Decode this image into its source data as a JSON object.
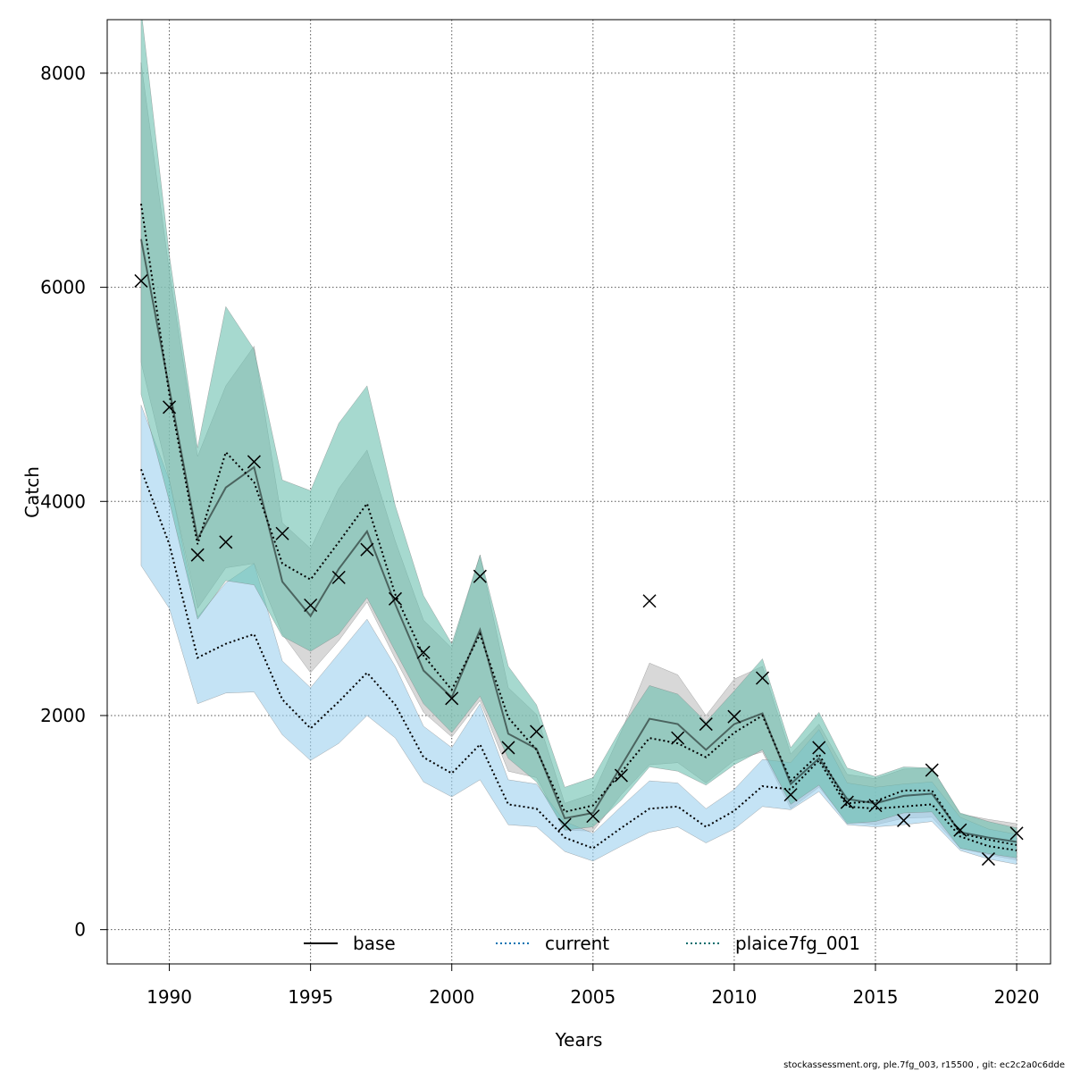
{
  "chart_data": {
    "type": "line",
    "xlabel": "Years",
    "ylabel": "Catch",
    "xlim": [
      1987.8,
      2021.2
    ],
    "ylim": [
      -320,
      8500
    ],
    "xticks": [
      1990,
      1995,
      2000,
      2005,
      2010,
      2015,
      2020
    ],
    "yticks": [
      0,
      2000,
      4000,
      6000,
      8000
    ],
    "grid": true,
    "legend_position": "bottom",
    "years": [
      1989,
      1990,
      1991,
      1992,
      1993,
      1994,
      1995,
      1996,
      1997,
      1998,
      1999,
      2000,
      2001,
      2002,
      2003,
      2004,
      2005,
      2006,
      2007,
      2008,
      2009,
      2010,
      2011,
      2012,
      2013,
      2014,
      2015,
      2016,
      2017,
      2018,
      2019,
      2020
    ],
    "observed": [
      6060,
      4880,
      3500,
      3620,
      4370,
      3700,
      3030,
      3290,
      3550,
      3090,
      2590,
      2160,
      3300,
      1700,
      1850,
      980,
      1060,
      1440,
      3070,
      1790,
      1920,
      1990,
      2350,
      1260,
      1700,
      1190,
      1160,
      1020,
      1490,
      930,
      660,
      900
    ],
    "series": [
      {
        "name": "base",
        "color": "#000000",
        "band_color": "#bebebe",
        "values": [
          6450,
          5050,
          3650,
          4130,
          4320,
          3250,
          2930,
          3370,
          3720,
          3040,
          2420,
          2170,
          2800,
          1830,
          1690,
          1040,
          1090,
          1530,
          1970,
          1920,
          1680,
          1920,
          2020,
          1360,
          1600,
          1220,
          1180,
          1250,
          1270,
          910,
          860,
          820
        ],
        "lower": [
          5300,
          4200,
          3000,
          3380,
          3420,
          2760,
          2400,
          2700,
          3060,
          2530,
          2030,
          1800,
          2140,
          1480,
          1420,
          930,
          920,
          1260,
          1540,
          1560,
          1370,
          1580,
          1660,
          1130,
          1330,
          1010,
          980,
          1040,
          1050,
          760,
          700,
          650
        ],
        "upper": [
          8100,
          6150,
          4420,
          5080,
          5450,
          3800,
          3560,
          4120,
          4480,
          3630,
          2890,
          2630,
          3500,
          2260,
          2010,
          1180,
          1270,
          1850,
          2490,
          2380,
          2000,
          2340,
          2460,
          1640,
          1920,
          1450,
          1410,
          1500,
          1510,
          1080,
          1030,
          990
        ]
      },
      {
        "name": "current",
        "color": "#0072b2",
        "band_color": "#9dd0ef",
        "values": [
          4300,
          3600,
          2540,
          2670,
          2760,
          2150,
          1880,
          2130,
          2400,
          2100,
          1610,
          1460,
          1730,
          1170,
          1130,
          860,
          760,
          950,
          1130,
          1150,
          960,
          1110,
          1340,
          1310,
          1580,
          1150,
          1130,
          1150,
          1170,
          870,
          780,
          740
        ],
        "lower": [
          3400,
          3000,
          2110,
          2210,
          2220,
          1820,
          1580,
          1740,
          2000,
          1790,
          1380,
          1240,
          1400,
          980,
          960,
          730,
          640,
          780,
          910,
          960,
          810,
          940,
          1150,
          1120,
          1290,
          980,
          960,
          980,
          1010,
          740,
          660,
          610
        ],
        "upper": [
          4900,
          4200,
          2920,
          3240,
          3420,
          2510,
          2260,
          2580,
          2900,
          2460,
          1900,
          1700,
          2110,
          1400,
          1360,
          1010,
          900,
          1150,
          1390,
          1370,
          1130,
          1310,
          1590,
          1560,
          1870,
          1370,
          1330,
          1360,
          1380,
          1050,
          940,
          890
        ]
      },
      {
        "name": "plaice7fg_001",
        "color": "#006d6d",
        "band_color": "#6bbfaf",
        "values": [
          6780,
          5000,
          3600,
          4460,
          4180,
          3420,
          3270,
          3620,
          3980,
          3130,
          2560,
          2240,
          2760,
          1980,
          1680,
          1100,
          1160,
          1470,
          1790,
          1740,
          1610,
          1840,
          2000,
          1390,
          1640,
          1180,
          1200,
          1300,
          1300,
          900,
          840,
          790
        ],
        "lower": [
          5000,
          4000,
          2900,
          3260,
          3220,
          2740,
          2600,
          2760,
          3100,
          2600,
          2110,
          1840,
          2180,
          1600,
          1380,
          930,
          960,
          1210,
          1520,
          1480,
          1350,
          1540,
          1680,
          1170,
          1350,
          990,
          1010,
          1090,
          1100,
          760,
          710,
          670
        ],
        "upper": [
          8600,
          6300,
          4500,
          5820,
          5420,
          4200,
          4100,
          4730,
          5080,
          3960,
          3120,
          2670,
          3500,
          2460,
          2100,
          1330,
          1420,
          1880,
          2280,
          2200,
          1940,
          2230,
          2530,
          1700,
          2030,
          1510,
          1430,
          1520,
          1510,
          1090,
          1010,
          950
        ]
      }
    ]
  },
  "footer_text": "stockassessment.org, ple.7fg_003, r15500 , git: ec2c2a0c6dde"
}
